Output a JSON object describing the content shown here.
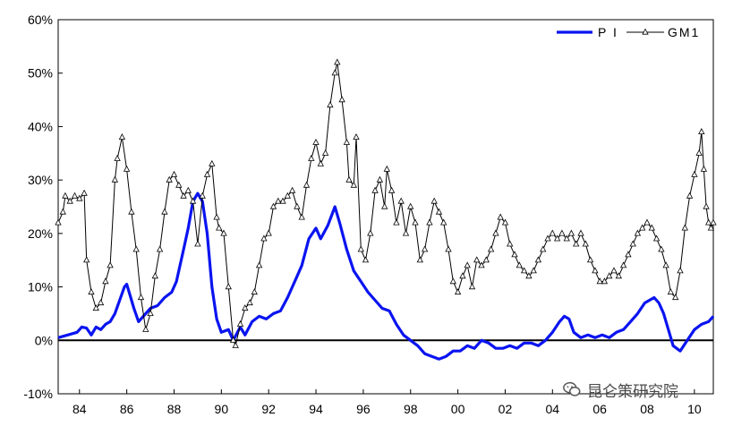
{
  "chart_data": {
    "type": "line",
    "title": "",
    "xlabel": "",
    "ylabel": "",
    "xlim": [
      1983.1,
      2010.8
    ],
    "ylim": [
      -10,
      60
    ],
    "grid": false,
    "legend_position": "top-right",
    "y_ticks": [
      {
        "value": -10,
        "label": "-10%"
      },
      {
        "value": 0,
        "label": "0%"
      },
      {
        "value": 10,
        "label": "10%"
      },
      {
        "value": 20,
        "label": "20%"
      },
      {
        "value": 30,
        "label": "30%"
      },
      {
        "value": 40,
        "label": "40%"
      },
      {
        "value": 50,
        "label": "50%"
      },
      {
        "value": 60,
        "label": "60%"
      }
    ],
    "x_ticks": [
      {
        "value": 1984,
        "label": "84"
      },
      {
        "value": 1986,
        "label": "86"
      },
      {
        "value": 1988,
        "label": "88"
      },
      {
        "value": 1990,
        "label": "90"
      },
      {
        "value": 1992,
        "label": "92"
      },
      {
        "value": 1994,
        "label": "94"
      },
      {
        "value": 1996,
        "label": "96"
      },
      {
        "value": 1998,
        "label": "98"
      },
      {
        "value": 2000,
        "label": "00"
      },
      {
        "value": 2002,
        "label": "02"
      },
      {
        "value": 2004,
        "label": "04"
      },
      {
        "value": 2006,
        "label": "06"
      },
      {
        "value": 2008,
        "label": "08"
      },
      {
        "value": 2010,
        "label": "10"
      }
    ],
    "series": [
      {
        "name": "P I",
        "color": "#0a14f0",
        "marker": "none",
        "points": [
          [
            1983.1,
            0.5
          ],
          [
            1983.5,
            1.0
          ],
          [
            1983.9,
            1.5
          ],
          [
            1984.1,
            2.5
          ],
          [
            1984.3,
            2.3
          ],
          [
            1984.5,
            1.0
          ],
          [
            1984.7,
            2.5
          ],
          [
            1984.9,
            2.0
          ],
          [
            1985.1,
            3.0
          ],
          [
            1985.3,
            3.5
          ],
          [
            1985.5,
            5.0
          ],
          [
            1985.7,
            7.5
          ],
          [
            1985.9,
            10.0
          ],
          [
            1986.0,
            10.5
          ],
          [
            1986.1,
            9.0
          ],
          [
            1986.3,
            6.0
          ],
          [
            1986.5,
            3.5
          ],
          [
            1986.8,
            5.0
          ],
          [
            1987.0,
            6.0
          ],
          [
            1987.3,
            6.5
          ],
          [
            1987.6,
            8.0
          ],
          [
            1987.9,
            9.0
          ],
          [
            1988.1,
            11.0
          ],
          [
            1988.4,
            17.0
          ],
          [
            1988.6,
            21.0
          ],
          [
            1988.8,
            26.0
          ],
          [
            1989.0,
            27.5
          ],
          [
            1989.2,
            26.0
          ],
          [
            1989.4,
            20.0
          ],
          [
            1989.6,
            10.0
          ],
          [
            1989.8,
            4.0
          ],
          [
            1990.0,
            1.5
          ],
          [
            1990.3,
            2.0
          ],
          [
            1990.5,
            0.0
          ],
          [
            1990.8,
            2.5
          ],
          [
            1991.0,
            1.0
          ],
          [
            1991.3,
            3.5
          ],
          [
            1991.6,
            4.5
          ],
          [
            1991.9,
            4.0
          ],
          [
            1992.2,
            5.0
          ],
          [
            1992.5,
            5.5
          ],
          [
            1992.8,
            8.0
          ],
          [
            1993.1,
            11.0
          ],
          [
            1993.4,
            14.0
          ],
          [
            1993.7,
            19.0
          ],
          [
            1994.0,
            21.0
          ],
          [
            1994.2,
            19.0
          ],
          [
            1994.5,
            21.5
          ],
          [
            1994.8,
            25.0
          ],
          [
            1995.0,
            22.0
          ],
          [
            1995.3,
            17.0
          ],
          [
            1995.6,
            13.0
          ],
          [
            1995.9,
            11.0
          ],
          [
            1996.2,
            9.0
          ],
          [
            1996.5,
            7.5
          ],
          [
            1996.8,
            6.0
          ],
          [
            1997.1,
            5.5
          ],
          [
            1997.4,
            3.0
          ],
          [
            1997.7,
            1.0
          ],
          [
            1998.0,
            0.0
          ],
          [
            1998.3,
            -1.0
          ],
          [
            1998.6,
            -2.5
          ],
          [
            1998.9,
            -3.0
          ],
          [
            1999.2,
            -3.5
          ],
          [
            1999.5,
            -3.0
          ],
          [
            1999.8,
            -2.0
          ],
          [
            2000.1,
            -2.0
          ],
          [
            2000.4,
            -1.0
          ],
          [
            2000.7,
            -1.5
          ],
          [
            2001.0,
            0.0
          ],
          [
            2001.3,
            -0.5
          ],
          [
            2001.6,
            -1.5
          ],
          [
            2001.9,
            -1.5
          ],
          [
            2002.2,
            -1.0
          ],
          [
            2002.5,
            -1.5
          ],
          [
            2002.8,
            -0.5
          ],
          [
            2003.1,
            -0.5
          ],
          [
            2003.4,
            -1.0
          ],
          [
            2003.7,
            0.0
          ],
          [
            2004.0,
            1.5
          ],
          [
            2004.3,
            3.5
          ],
          [
            2004.5,
            4.5
          ],
          [
            2004.7,
            4.0
          ],
          [
            2004.9,
            1.5
          ],
          [
            2005.2,
            0.5
          ],
          [
            2005.5,
            1.0
          ],
          [
            2005.8,
            0.5
          ],
          [
            2006.1,
            1.0
          ],
          [
            2006.4,
            0.5
          ],
          [
            2006.7,
            1.5
          ],
          [
            2007.0,
            2.0
          ],
          [
            2007.3,
            3.5
          ],
          [
            2007.6,
            5.0
          ],
          [
            2007.9,
            7.0
          ],
          [
            2008.1,
            7.5
          ],
          [
            2008.3,
            8.0
          ],
          [
            2008.5,
            7.0
          ],
          [
            2008.7,
            5.0
          ],
          [
            2008.9,
            2.0
          ],
          [
            2009.1,
            -1.0
          ],
          [
            2009.4,
            -2.0
          ],
          [
            2009.7,
            0.0
          ],
          [
            2010.0,
            2.0
          ],
          [
            2010.3,
            3.0
          ],
          [
            2010.6,
            3.5
          ],
          [
            2010.8,
            4.5
          ]
        ]
      },
      {
        "name": "GM1",
        "color": "#000000",
        "marker": "triangle",
        "points": [
          [
            1983.1,
            22.0
          ],
          [
            1983.3,
            24.0
          ],
          [
            1983.4,
            27.0
          ],
          [
            1983.6,
            26.0
          ],
          [
            1983.8,
            27.0
          ],
          [
            1984.0,
            26.5
          ],
          [
            1984.2,
            27.5
          ],
          [
            1984.3,
            15.0
          ],
          [
            1984.5,
            9.0
          ],
          [
            1984.7,
            6.0
          ],
          [
            1984.9,
            7.0
          ],
          [
            1985.1,
            11.0
          ],
          [
            1985.3,
            14.0
          ],
          [
            1985.5,
            30.0
          ],
          [
            1985.6,
            34.0
          ],
          [
            1985.8,
            38.0
          ],
          [
            1986.0,
            32.0
          ],
          [
            1986.2,
            24.0
          ],
          [
            1986.4,
            17.0
          ],
          [
            1986.6,
            8.0
          ],
          [
            1986.8,
            2.0
          ],
          [
            1987.0,
            5.0
          ],
          [
            1987.2,
            12.0
          ],
          [
            1987.4,
            17.0
          ],
          [
            1987.6,
            24.0
          ],
          [
            1987.8,
            30.0
          ],
          [
            1988.0,
            31.0
          ],
          [
            1988.2,
            29.0
          ],
          [
            1988.4,
            27.0
          ],
          [
            1988.6,
            28.0
          ],
          [
            1988.8,
            26.0
          ],
          [
            1989.0,
            18.0
          ],
          [
            1989.2,
            27.0
          ],
          [
            1989.4,
            31.0
          ],
          [
            1989.6,
            33.0
          ],
          [
            1989.8,
            23.0
          ],
          [
            1989.9,
            21.0
          ],
          [
            1990.1,
            20.0
          ],
          [
            1990.3,
            10.0
          ],
          [
            1990.5,
            0.0
          ],
          [
            1990.6,
            -1.0
          ],
          [
            1990.8,
            3.0
          ],
          [
            1991.0,
            6.0
          ],
          [
            1991.2,
            7.0
          ],
          [
            1991.4,
            9.0
          ],
          [
            1991.6,
            14.0
          ],
          [
            1991.8,
            19.0
          ],
          [
            1992.0,
            20.0
          ],
          [
            1992.2,
            25.0
          ],
          [
            1992.4,
            26.0
          ],
          [
            1992.6,
            26.0
          ],
          [
            1992.8,
            27.0
          ],
          [
            1993.0,
            28.0
          ],
          [
            1993.2,
            25.0
          ],
          [
            1993.4,
            23.0
          ],
          [
            1993.6,
            29.0
          ],
          [
            1993.8,
            34.0
          ],
          [
            1994.0,
            37.0
          ],
          [
            1994.2,
            33.0
          ],
          [
            1994.4,
            35.0
          ],
          [
            1994.6,
            44.0
          ],
          [
            1994.8,
            50.0
          ],
          [
            1994.9,
            52.0
          ],
          [
            1995.1,
            45.0
          ],
          [
            1995.3,
            37.0
          ],
          [
            1995.4,
            30.0
          ],
          [
            1995.6,
            29.0
          ],
          [
            1995.7,
            38.0
          ],
          [
            1995.9,
            17.0
          ],
          [
            1996.1,
            15.0
          ],
          [
            1996.3,
            20.0
          ],
          [
            1996.5,
            28.0
          ],
          [
            1996.7,
            30.0
          ],
          [
            1996.9,
            25.0
          ],
          [
            1997.0,
            32.0
          ],
          [
            1997.2,
            28.0
          ],
          [
            1997.4,
            22.0
          ],
          [
            1997.6,
            26.0
          ],
          [
            1997.8,
            20.0
          ],
          [
            1998.0,
            25.0
          ],
          [
            1998.2,
            22.0
          ],
          [
            1998.4,
            15.0
          ],
          [
            1998.6,
            17.0
          ],
          [
            1998.8,
            22.0
          ],
          [
            1999.0,
            26.0
          ],
          [
            1999.2,
            24.0
          ],
          [
            1999.4,
            22.0
          ],
          [
            1999.6,
            17.0
          ],
          [
            1999.8,
            11.0
          ],
          [
            2000.0,
            9.0
          ],
          [
            2000.2,
            12.0
          ],
          [
            2000.4,
            14.0
          ],
          [
            2000.6,
            10.0
          ],
          [
            2000.8,
            15.0
          ],
          [
            2001.0,
            14.0
          ],
          [
            2001.2,
            15.0
          ],
          [
            2001.4,
            17.0
          ],
          [
            2001.6,
            20.0
          ],
          [
            2001.8,
            23.0
          ],
          [
            2002.0,
            22.0
          ],
          [
            2002.2,
            18.0
          ],
          [
            2002.4,
            16.0
          ],
          [
            2002.6,
            14.0
          ],
          [
            2002.8,
            13.0
          ],
          [
            2003.0,
            12.0
          ],
          [
            2003.2,
            13.0
          ],
          [
            2003.4,
            15.0
          ],
          [
            2003.6,
            17.0
          ],
          [
            2003.8,
            19.0
          ],
          [
            2004.0,
            20.0
          ],
          [
            2004.2,
            19.0
          ],
          [
            2004.4,
            20.0
          ],
          [
            2004.6,
            19.0
          ],
          [
            2004.8,
            20.0
          ],
          [
            2005.0,
            18.0
          ],
          [
            2005.2,
            20.0
          ],
          [
            2005.4,
            18.0
          ],
          [
            2005.6,
            15.0
          ],
          [
            2005.8,
            13.0
          ],
          [
            2006.0,
            11.0
          ],
          [
            2006.2,
            11.0
          ],
          [
            2006.4,
            12.0
          ],
          [
            2006.6,
            13.0
          ],
          [
            2006.8,
            12.0
          ],
          [
            2007.0,
            14.0
          ],
          [
            2007.2,
            16.0
          ],
          [
            2007.4,
            18.0
          ],
          [
            2007.6,
            20.0
          ],
          [
            2007.8,
            21.0
          ],
          [
            2008.0,
            22.0
          ],
          [
            2008.2,
            21.0
          ],
          [
            2008.4,
            19.0
          ],
          [
            2008.6,
            17.0
          ],
          [
            2008.8,
            14.0
          ],
          [
            2009.0,
            9.0
          ],
          [
            2009.2,
            8.0
          ],
          [
            2009.4,
            13.0
          ],
          [
            2009.6,
            21.0
          ],
          [
            2009.8,
            27.0
          ],
          [
            2010.0,
            31.0
          ],
          [
            2010.2,
            35.0
          ],
          [
            2010.3,
            39.0
          ],
          [
            2010.4,
            32.0
          ],
          [
            2010.5,
            25.0
          ],
          [
            2010.6,
            22.0
          ],
          [
            2010.7,
            21.0
          ],
          [
            2010.8,
            22.0
          ]
        ]
      }
    ]
  },
  "watermark": {
    "icon": "wechat-icon",
    "text": "昆仑策研究院"
  }
}
